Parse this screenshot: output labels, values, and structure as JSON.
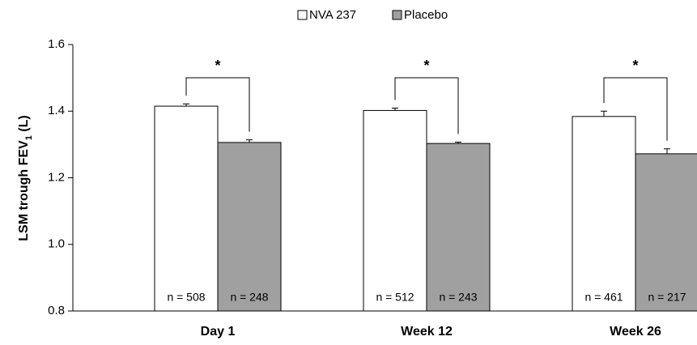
{
  "chart_data": {
    "type": "bar",
    "ylabel_parts": [
      "LSM trough FEV",
      "1",
      " (L)"
    ],
    "categories": [
      "Day 1",
      "Week 12",
      "Week 26"
    ],
    "series": [
      {
        "name": "NVA 237",
        "color": "#ffffff",
        "values": [
          1.415,
          1.402,
          1.384
        ],
        "errors": [
          0.007,
          0.007,
          0.016
        ],
        "n_labels": [
          "n = 508",
          "n = 512",
          "n = 461"
        ]
      },
      {
        "name": "Placebo",
        "color": "#a0a0a0",
        "values": [
          1.306,
          1.303,
          1.272
        ],
        "errors": [
          0.008,
          0.004,
          0.015
        ],
        "n_labels": [
          "n = 248",
          "n = 243",
          "n = 217"
        ]
      }
    ],
    "significance": [
      "*",
      "*",
      "*"
    ],
    "ylim": [
      0.8,
      1.6
    ],
    "yticks": [
      0.8,
      {
        "value": 1,
        "label": "1.0"
      },
      1.2,
      1.4,
      1.6
    ],
    "legend": "top"
  }
}
